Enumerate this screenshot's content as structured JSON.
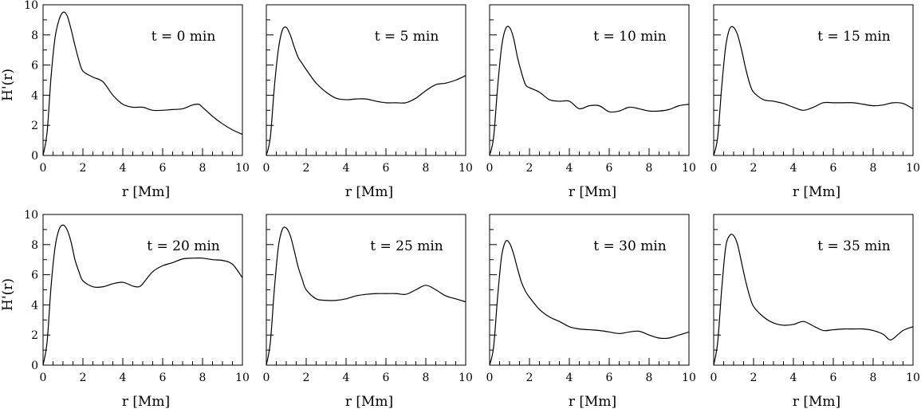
{
  "chart_data": [
    {
      "type": "line",
      "title": "t = 0 min",
      "xlabel": "r [Mm]",
      "ylabel": "H'(r)",
      "xlim": [
        0,
        10
      ],
      "ylim": [
        0,
        10
      ],
      "x_ticks": [
        "0",
        "2",
        "4",
        "6",
        "8",
        "10"
      ],
      "y_ticks": [
        "0",
        "2",
        "4",
        "6",
        "8",
        "10"
      ],
      "series": [
        {
          "x": [
            0,
            0.2,
            0.4,
            0.6,
            0.8,
            1.0,
            1.2,
            1.4,
            1.6,
            1.8,
            2.0,
            2.5,
            3.0,
            3.5,
            4.0,
            4.5,
            5.0,
            5.5,
            6.0,
            6.5,
            7.0,
            7.5,
            7.8,
            8.0,
            8.5,
            9.0,
            9.5,
            10.0
          ],
          "y": [
            0,
            1.5,
            5.2,
            7.8,
            9.0,
            9.5,
            9.3,
            8.4,
            7.3,
            6.3,
            5.6,
            5.2,
            4.9,
            4.0,
            3.4,
            3.2,
            3.2,
            3.0,
            3.0,
            3.05,
            3.1,
            3.35,
            3.4,
            3.2,
            2.6,
            2.1,
            1.7,
            1.4
          ]
        }
      ]
    },
    {
      "type": "line",
      "title": "t = 5 min",
      "xlabel": "r [Mm]",
      "ylabel": "",
      "xlim": [
        0,
        10
      ],
      "ylim": [
        0,
        10
      ],
      "x_ticks": [
        "0",
        "2",
        "4",
        "6",
        "8",
        "10"
      ],
      "y_ticks": [],
      "series": [
        {
          "x": [
            0,
            0.2,
            0.4,
            0.6,
            0.8,
            1.0,
            1.2,
            1.4,
            1.6,
            1.8,
            2.0,
            2.5,
            3.0,
            3.5,
            4.0,
            4.5,
            5.0,
            5.5,
            6.0,
            6.5,
            7.0,
            7.5,
            8.0,
            8.5,
            9.0,
            9.5,
            10.0
          ],
          "y": [
            0,
            1.2,
            4.5,
            7.0,
            8.3,
            8.5,
            8.0,
            7.2,
            6.5,
            6.1,
            5.7,
            4.8,
            4.2,
            3.8,
            3.7,
            3.75,
            3.75,
            3.6,
            3.5,
            3.5,
            3.5,
            3.8,
            4.3,
            4.7,
            4.8,
            5.0,
            5.3
          ]
        }
      ]
    },
    {
      "type": "line",
      "title": "t = 10 min",
      "xlabel": "r [Mm]",
      "ylabel": "",
      "xlim": [
        0,
        10
      ],
      "ylim": [
        0,
        10
      ],
      "x_ticks": [
        "0",
        "2",
        "4",
        "6",
        "8",
        "10"
      ],
      "y_ticks": [],
      "series": [
        {
          "x": [
            0,
            0.2,
            0.4,
            0.6,
            0.8,
            1.0,
            1.2,
            1.4,
            1.6,
            1.8,
            2.0,
            2.5,
            3.0,
            3.5,
            4.0,
            4.5,
            5.0,
            5.5,
            6.0,
            6.5,
            7.0,
            7.5,
            8.0,
            8.5,
            9.0,
            9.5,
            10.0
          ],
          "y": [
            0,
            1.2,
            4.5,
            7.2,
            8.4,
            8.5,
            7.8,
            6.5,
            5.5,
            4.7,
            4.5,
            4.2,
            3.7,
            3.6,
            3.6,
            3.1,
            3.3,
            3.3,
            2.9,
            2.95,
            3.2,
            3.1,
            2.95,
            2.95,
            3.05,
            3.3,
            3.4
          ]
        }
      ]
    },
    {
      "type": "line",
      "title": "t = 15 min",
      "xlabel": "r [Mm]",
      "ylabel": "",
      "xlim": [
        0,
        10
      ],
      "ylim": [
        0,
        10
      ],
      "x_ticks": [
        "0",
        "2",
        "4",
        "6",
        "8",
        "10"
      ],
      "y_ticks": [],
      "series": [
        {
          "x": [
            0,
            0.2,
            0.4,
            0.6,
            0.8,
            1.0,
            1.2,
            1.4,
            1.6,
            1.8,
            2.0,
            2.5,
            3.0,
            3.5,
            4.0,
            4.5,
            5.0,
            5.5,
            6.0,
            6.5,
            7.0,
            7.5,
            8.0,
            8.5,
            9.0,
            9.5,
            10.0
          ],
          "y": [
            0,
            1.2,
            4.5,
            7.2,
            8.4,
            8.5,
            8.0,
            7.0,
            5.8,
            4.8,
            4.2,
            3.7,
            3.6,
            3.45,
            3.2,
            3.0,
            3.2,
            3.5,
            3.5,
            3.5,
            3.5,
            3.4,
            3.3,
            3.35,
            3.5,
            3.45,
            3.1
          ]
        }
      ]
    },
    {
      "type": "line",
      "title": "t = 20 min",
      "xlabel": "r [Mm]",
      "ylabel": "H'(r)",
      "xlim": [
        0,
        10
      ],
      "ylim": [
        0,
        10
      ],
      "x_ticks": [
        "0",
        "2",
        "4",
        "6",
        "8",
        "10"
      ],
      "y_ticks": [
        "0",
        "2",
        "4",
        "6",
        "8",
        "10"
      ],
      "series": [
        {
          "x": [
            0,
            0.2,
            0.4,
            0.6,
            0.8,
            1.0,
            1.2,
            1.4,
            1.6,
            1.8,
            2.0,
            2.5,
            3.0,
            3.5,
            4.0,
            4.5,
            4.8,
            5.0,
            5.5,
            6.0,
            6.5,
            7.0,
            7.5,
            8.0,
            8.5,
            9.0,
            9.5,
            10.0
          ],
          "y": [
            0,
            1.5,
            5.2,
            7.8,
            9.0,
            9.3,
            9.0,
            8.2,
            7.0,
            6.2,
            5.6,
            5.2,
            5.2,
            5.4,
            5.5,
            5.25,
            5.2,
            5.4,
            6.2,
            6.6,
            6.8,
            7.05,
            7.1,
            7.1,
            7.0,
            6.95,
            6.7,
            5.8
          ]
        }
      ]
    },
    {
      "type": "line",
      "title": "t = 25 min",
      "xlabel": "r [Mm]",
      "ylabel": "",
      "xlim": [
        0,
        10
      ],
      "ylim": [
        0,
        10
      ],
      "x_ticks": [
        "0",
        "2",
        "4",
        "6",
        "8",
        "10"
      ],
      "y_ticks": [],
      "series": [
        {
          "x": [
            0,
            0.2,
            0.4,
            0.6,
            0.8,
            1.0,
            1.2,
            1.4,
            1.6,
            1.8,
            2.0,
            2.5,
            3.0,
            3.5,
            4.0,
            4.5,
            5.0,
            5.5,
            6.0,
            6.5,
            7.0,
            7.5,
            8.0,
            8.5,
            9.0,
            9.5,
            10.0
          ],
          "y": [
            0,
            1.5,
            5.0,
            7.8,
            9.0,
            9.1,
            8.6,
            7.6,
            6.5,
            5.7,
            5.0,
            4.4,
            4.3,
            4.3,
            4.4,
            4.6,
            4.7,
            4.75,
            4.75,
            4.75,
            4.7,
            5.0,
            5.3,
            5.0,
            4.6,
            4.4,
            4.2
          ]
        }
      ]
    },
    {
      "type": "line",
      "title": "t = 30 min",
      "xlabel": "r [Mm]",
      "ylabel": "",
      "xlim": [
        0,
        10
      ],
      "ylim": [
        0,
        10
      ],
      "x_ticks": [
        "0",
        "2",
        "4",
        "6",
        "8",
        "10"
      ],
      "y_ticks": [],
      "series": [
        {
          "x": [
            0,
            0.2,
            0.4,
            0.6,
            0.8,
            1.0,
            1.2,
            1.4,
            1.6,
            1.8,
            2.0,
            2.5,
            3.0,
            3.5,
            4.0,
            4.5,
            5.0,
            5.5,
            6.0,
            6.5,
            7.0,
            7.5,
            8.0,
            8.5,
            9.0,
            9.5,
            10.0
          ],
          "y": [
            0,
            1.2,
            4.5,
            7.2,
            8.2,
            8.1,
            7.4,
            6.4,
            5.5,
            4.9,
            4.5,
            3.7,
            3.2,
            2.9,
            2.55,
            2.4,
            2.35,
            2.3,
            2.2,
            2.1,
            2.2,
            2.25,
            2.0,
            1.8,
            1.8,
            2.0,
            2.2
          ]
        }
      ]
    },
    {
      "type": "line",
      "title": "t = 35 min",
      "xlabel": "r [Mm]",
      "ylabel": "",
      "xlim": [
        0,
        10
      ],
      "ylim": [
        0,
        10
      ],
      "x_ticks": [
        "0",
        "2",
        "4",
        "6",
        "8",
        "10"
      ],
      "y_ticks": [],
      "series": [
        {
          "x": [
            0,
            0.2,
            0.4,
            0.6,
            0.8,
            1.0,
            1.2,
            1.4,
            1.6,
            1.8,
            2.0,
            2.5,
            3.0,
            3.5,
            4.0,
            4.5,
            5.0,
            5.5,
            6.0,
            6.5,
            7.0,
            7.5,
            8.0,
            8.5,
            8.8,
            9.0,
            9.5,
            10.0
          ],
          "y": [
            0,
            1.5,
            5.0,
            7.8,
            8.6,
            8.6,
            8.0,
            6.8,
            5.6,
            4.6,
            3.9,
            3.2,
            2.8,
            2.65,
            2.7,
            2.9,
            2.6,
            2.3,
            2.35,
            2.4,
            2.4,
            2.4,
            2.3,
            2.05,
            1.7,
            1.75,
            2.3,
            2.55
          ]
        }
      ]
    }
  ]
}
